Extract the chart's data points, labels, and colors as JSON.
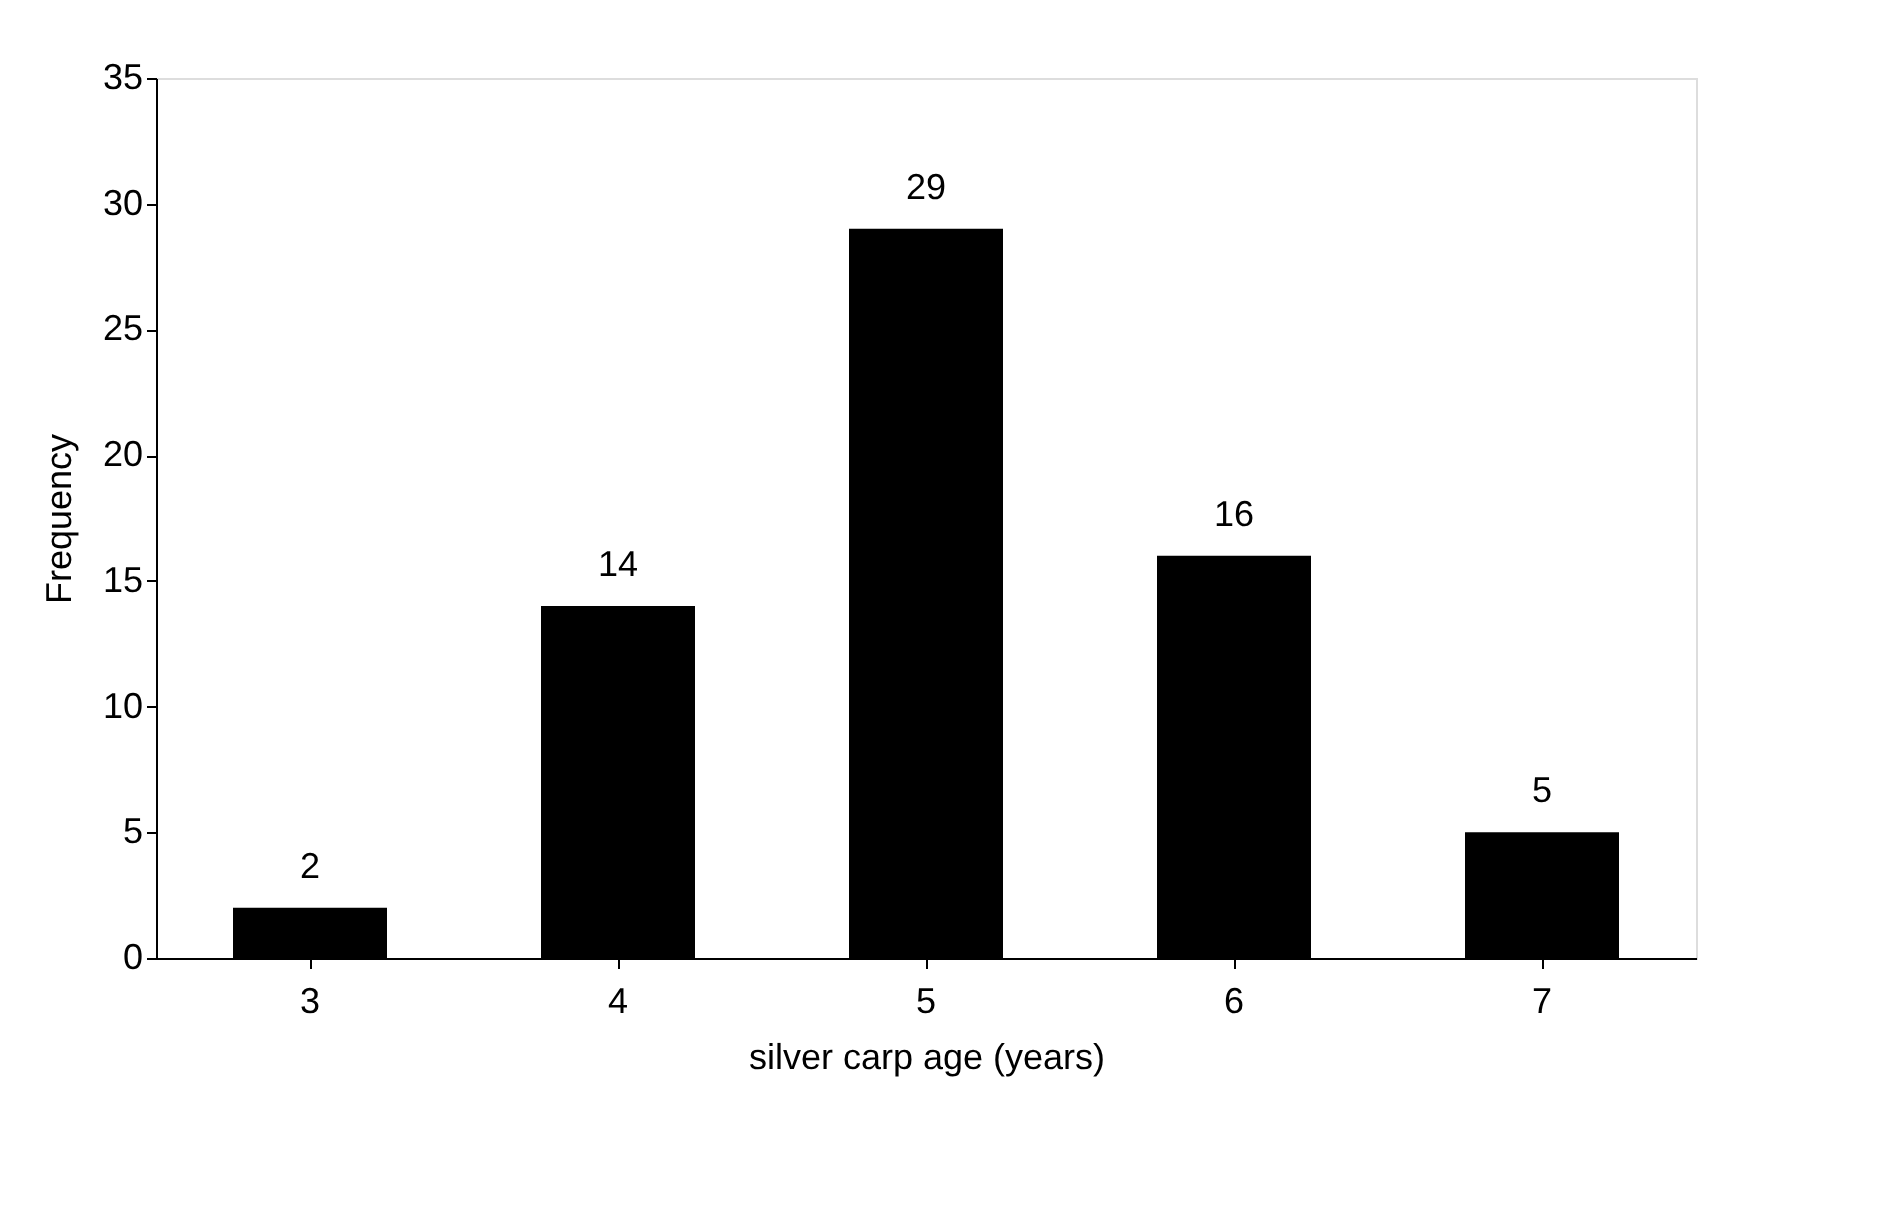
{
  "chart_data": {
    "type": "bar",
    "xlabel": "silver carp age (years)",
    "ylabel": "Frequency",
    "categories": [
      "3",
      "4",
      "5",
      "6",
      "7"
    ],
    "values": [
      2,
      14,
      29,
      16,
      5
    ],
    "color": "#000000",
    "ylim": [
      0,
      35
    ],
    "yticks": [
      0,
      5,
      10,
      15,
      20,
      25,
      30,
      35
    ],
    "grid": false,
    "data_labels": true
  }
}
